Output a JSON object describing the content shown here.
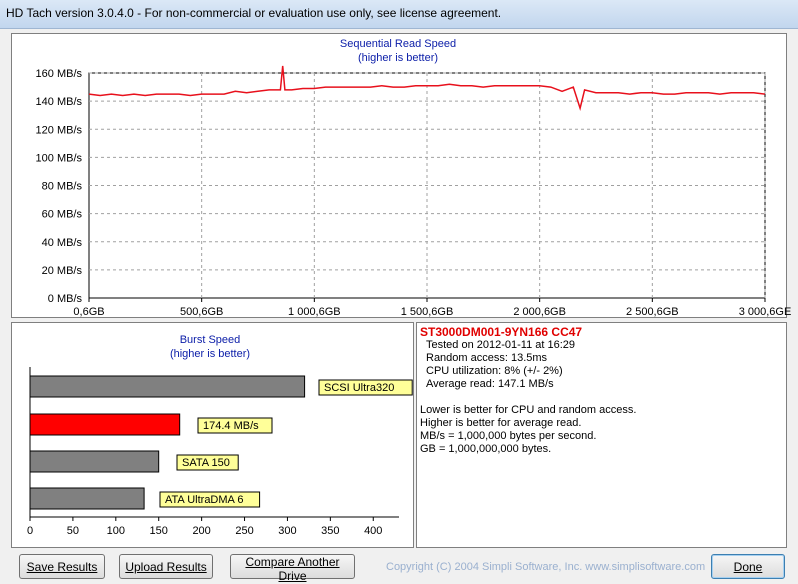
{
  "window": {
    "title": "HD Tach version 3.0.4.0  - For non-commercial or evaluation use only, see license agreement."
  },
  "read_chart": {
    "title": "Sequential Read Speed",
    "subtitle": "(higher is better)",
    "y_ticks": [
      "0 MB/s",
      "20 MB/s",
      "40 MB/s",
      "60 MB/s",
      "80 MB/s",
      "100 MB/s",
      "120 MB/s",
      "140 MB/s",
      "160 MB/s"
    ],
    "x_ticks": [
      "0,6GB",
      "500,6GB",
      "1 000,6GB",
      "1 500,6GB",
      "2 000,6GB",
      "2 500,6GB",
      "3 000,6GE"
    ],
    "line_color": "#e8101c"
  },
  "burst_chart": {
    "title": "Burst Speed",
    "subtitle": "(higher is better)",
    "x_ticks": [
      "0",
      "50",
      "100",
      "150",
      "200",
      "250",
      "300",
      "350",
      "400"
    ],
    "bar_labels": [
      "SCSI Ultra320",
      "174.4 MB/s",
      "SATA 150",
      "ATA UltraDMA 6"
    ],
    "bar_colors": [
      "#808080",
      "#ff0000",
      "#808080",
      "#808080"
    ],
    "label_bg": "#ffff99"
  },
  "chart_data": [
    {
      "type": "line",
      "title": "Sequential Read Speed",
      "subtitle": "(higher is better)",
      "xlabel": "",
      "ylabel": "",
      "x": [
        0.6,
        50,
        100,
        150,
        200,
        250,
        300,
        350,
        400,
        450,
        500,
        550,
        600,
        650,
        700,
        750,
        800,
        850,
        860,
        870,
        900,
        950,
        1000,
        1050,
        1100,
        1150,
        1200,
        1250,
        1300,
        1350,
        1400,
        1450,
        1500,
        1550,
        1600,
        1650,
        1700,
        1750,
        1800,
        1850,
        1900,
        1950,
        2000,
        2050,
        2100,
        2150,
        2180,
        2200,
        2250,
        2300,
        2350,
        2400,
        2450,
        2500,
        2550,
        2600,
        2650,
        2700,
        2750,
        2800,
        2850,
        2900,
        2950,
        3000
      ],
      "y": [
        145,
        144,
        145,
        144,
        145,
        144,
        145,
        145,
        145,
        144,
        145,
        145,
        145,
        147,
        146,
        147,
        148,
        148,
        165,
        148,
        148,
        149,
        149,
        150,
        150,
        150,
        150,
        150,
        151,
        150,
        150,
        151,
        151,
        151,
        152,
        151,
        151,
        150,
        151,
        151,
        151,
        151,
        151,
        150,
        147,
        150,
        135,
        148,
        146,
        146,
        146,
        145,
        146,
        146,
        145,
        145,
        146,
        146,
        146,
        145,
        146,
        146,
        146,
        145
      ],
      "ylim": [
        0,
        160
      ],
      "xlim": [
        0.6,
        3000.6
      ],
      "x_tick_labels": [
        "0,6GB",
        "500,6GB",
        "1 000,6GB",
        "1 500,6GB",
        "2 000,6GB",
        "2 500,6GB",
        "3 000,6GE"
      ],
      "y_tick_labels": [
        "0 MB/s",
        "20 MB/s",
        "40 MB/s",
        "60 MB/s",
        "80 MB/s",
        "100 MB/s",
        "120 MB/s",
        "140 MB/s",
        "160 MB/s"
      ],
      "grid": true
    },
    {
      "type": "bar",
      "orientation": "horizontal",
      "title": "Burst Speed",
      "subtitle": "(higher is better)",
      "categories": [
        "SCSI Ultra320",
        "174.4 MB/s",
        "SATA 150",
        "ATA UltraDMA 6"
      ],
      "values": [
        320,
        174.4,
        150,
        133
      ],
      "xlim": [
        0,
        430
      ],
      "x_tick_labels": [
        "0",
        "50",
        "100",
        "150",
        "200",
        "250",
        "300",
        "350",
        "400"
      ],
      "grid": false
    }
  ],
  "info": {
    "drive": "ST3000DM001-9YN166 CC47",
    "tested": "Tested on 2012-01-11 at 16:29",
    "random": "Random access: 13.5ms",
    "cpu": "CPU utilization: 8% (+/- 2%)",
    "avg": "Average read: 147.1 MB/s",
    "n1": "Lower is better for CPU and random access.",
    "n2": "Higher is better for average read.",
    "n3": "MB/s = 1,000,000 bytes per second.",
    "n4": "GB = 1,000,000,000 bytes.",
    "drive_color": "#e00000"
  },
  "buttons": {
    "save": "Save Results",
    "upload": "Upload Results",
    "compare": "Compare Another Drive",
    "done": "Done"
  },
  "copyright": "Copyright (C) 2004 Simpli Software, Inc. www.simplisoftware.com"
}
